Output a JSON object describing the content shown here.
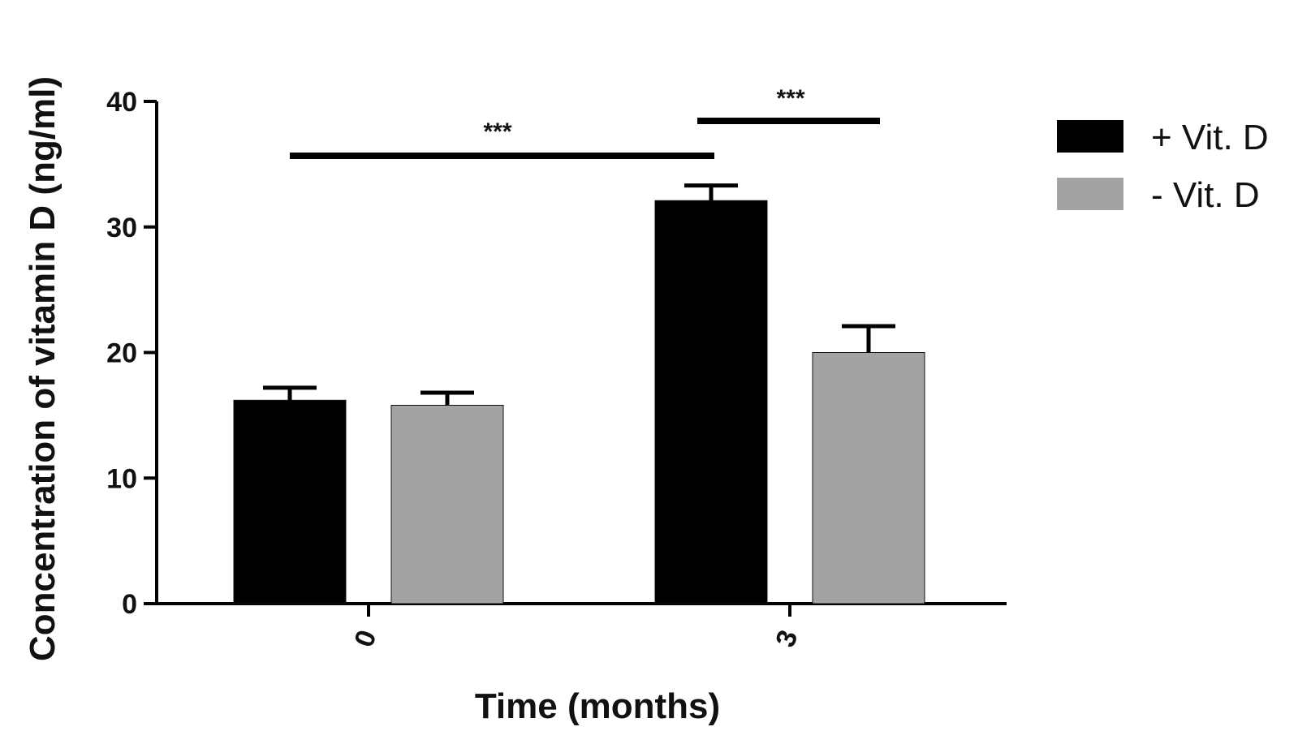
{
  "chart_data": {
    "type": "bar",
    "categories": [
      "0",
      "3"
    ],
    "series": [
      {
        "name": "+ Vit. D",
        "values": [
          16.2,
          32.1
        ],
        "errors": [
          1.0,
          1.2
        ],
        "color": "#000000"
      },
      {
        "name": "- Vit. D",
        "values": [
          15.8,
          20.0
        ],
        "errors": [
          1.0,
          2.1
        ],
        "color": "#a3a3a6"
      }
    ],
    "title": "",
    "xlabel": "Time (months)",
    "ylabel": "Concentration of vitamin D  (ng/ml)",
    "ylim": [
      0,
      40
    ],
    "yticks": [
      "0",
      "10",
      "20",
      "30",
      "40"
    ],
    "legend_position": "top-right",
    "grid": false,
    "significance": [
      {
        "label": "***",
        "from": {
          "category": 0,
          "series": 0
        },
        "to": {
          "category": 1,
          "series": 0
        }
      },
      {
        "label": "***",
        "from": {
          "category": 1,
          "series": 0
        },
        "to": {
          "category": 1,
          "series": 1
        }
      }
    ]
  }
}
